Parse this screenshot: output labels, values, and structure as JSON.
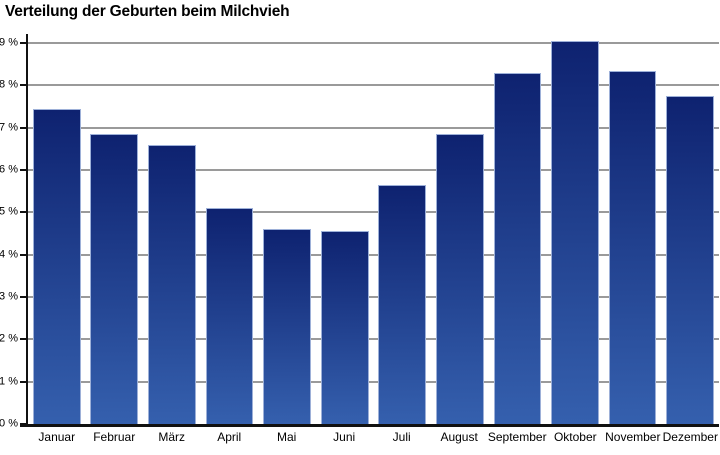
{
  "title": "Verteilung der Geburten beim Milchvieh",
  "colors": {
    "background": "#ffffff",
    "text": "#000000",
    "axis": "#111111",
    "gridline": "#9a9a9a",
    "bar_top": "#0e2270",
    "bar_bottom": "#3560ae",
    "bar_edge": "#9db0d8"
  },
  "chart_data": {
    "type": "bar",
    "title": "Verteilung der Geburten beim Milchvieh",
    "categories": [
      "Januar",
      "Februar",
      "März",
      "April",
      "Mai",
      "Juni",
      "Juli",
      "August",
      "September",
      "Oktober",
      "November",
      "Dezember"
    ],
    "values": [
      7.45,
      6.85,
      6.6,
      5.1,
      4.6,
      4.55,
      5.65,
      6.85,
      8.3,
      9.05,
      8.35,
      7.75
    ],
    "xlabel": "",
    "ylabel": "",
    "ylim": [
      0,
      9
    ],
    "ytick_step": 1,
    "ytick_suffix": " %",
    "ytick_labels": [
      "0 %",
      "1 %",
      "2 %",
      "3 %",
      "4 %",
      "5 %",
      "6 %",
      "7 %",
      "8 %",
      "9 %"
    ],
    "grid": true,
    "legend_position": "none",
    "bar_gradient": [
      "#0e2270",
      "#3560ae"
    ]
  }
}
